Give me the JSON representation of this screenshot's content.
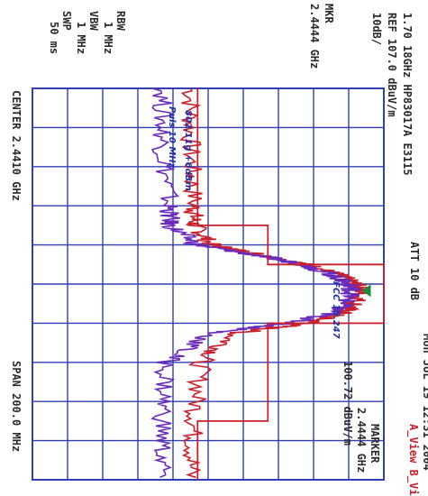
{
  "header": {
    "range_line": "1.70 18GHz HP83017A E3115",
    "ref_line": "REF 107.0 dBuV/m",
    "scale": "10dB/",
    "marker_label": "MKR",
    "marker_value": "2.4444 GHz",
    "att": "ATT 10 dB",
    "date": "Mon JUL 19 12:31 2004",
    "traces_legend": "A_View B_View",
    "marker_box_title": "MARKER",
    "marker_box_freq": "2.4444 GHz",
    "marker_box_level": "100.72 dBuV/m"
  },
  "settings": {
    "rbw_label": "RBW",
    "rbw_value": "1 MHz",
    "vbw_label": "VBW",
    "vbw_value": "1 MHz",
    "swp_label": "SWP",
    "swp_value": "50 ms"
  },
  "footer": {
    "center": "CENTER 2.4410 GHz",
    "span": "SPAN 200.0 MHz"
  },
  "annotations": {
    "red_trace": "802.11g +6dBm",
    "purple_trace": "Puls 10 MHz",
    "limit_label": "FCC 15.247"
  },
  "chart_data": {
    "type": "line",
    "title": "",
    "xlabel": "",
    "ylabel": "",
    "x_unit": "GHz",
    "y_unit": "dBuV/m",
    "xlim": [
      2.341,
      2.541
    ],
    "ylim": [
      7.0,
      107.0
    ],
    "grid": true,
    "colors": {
      "trace_a": "#cc1f2a",
      "trace_b": "#6a2bbd",
      "grid": "#2f3fb6"
    },
    "x": [
      2.341,
      2.371,
      2.401,
      2.411,
      2.421,
      2.426,
      2.431,
      2.436,
      2.441,
      2.4444,
      2.451,
      2.456,
      2.461,
      2.466,
      2.481,
      2.511,
      2.541
    ],
    "series": [
      {
        "name": "A_View",
        "values": [
          52,
          52,
          53,
          53,
          58,
          72,
          85,
          94,
          99,
          100.7,
          99,
          95,
          85,
          65,
          55,
          53,
          52
        ]
      },
      {
        "name": "B_View",
        "values": [
          44,
          44,
          46,
          46,
          54,
          70,
          84,
          92,
          97,
          98,
          96,
          92,
          80,
          58,
          45,
          44,
          44
        ]
      },
      {
        "name": "Limit",
        "values": [
          54,
          54,
          54,
          74,
          74,
          74,
          107,
          107,
          107,
          107,
          107,
          107,
          74,
          74,
          74,
          54,
          54
        ]
      }
    ],
    "marker": {
      "x": 2.4444,
      "y": 100.72
    }
  }
}
